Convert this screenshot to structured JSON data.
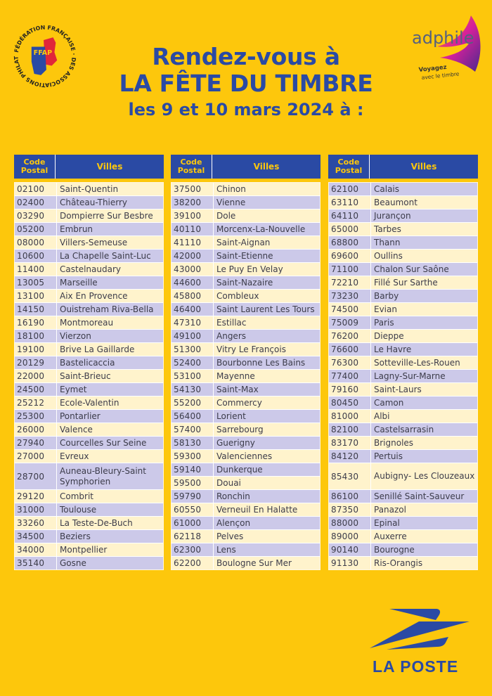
{
  "header": {
    "line1": "Rendez-vous à",
    "line2": "LA FÊTE DU TIMBRE",
    "line3": "les 9 et 10 mars 2024 à :"
  },
  "logos": {
    "ffap": {
      "ring_text": "FÉDÉRATION FRANÇAISE DES ASSOCIATIONS PHILATÉLIQUES",
      "initials": "FFAP"
    },
    "adphile": {
      "name": "adphile",
      "tagline_1": "Voyagez",
      "tagline_2": "avec le timbre"
    },
    "laposte": {
      "name": "LA POSTE"
    }
  },
  "colors": {
    "background": "#fdc70c",
    "header_blue": "#2a4aa4",
    "row_light": "#fff3cc",
    "row_dark": "#ccc9e9"
  },
  "table_headers": {
    "code": "Code Postal",
    "city": "Villes"
  },
  "tables": [
    {
      "first_row_style": "light",
      "rows": [
        {
          "code": "02100",
          "city": "Saint-Quentin"
        },
        {
          "code": "02400",
          "city": "Château-Thierry"
        },
        {
          "code": "03290",
          "city": "Dompierre Sur Besbre"
        },
        {
          "code": "05200",
          "city": "Embrun"
        },
        {
          "code": "08000",
          "city": "Villers-Semeuse"
        },
        {
          "code": "10600",
          "city": "La Chapelle Saint-Luc"
        },
        {
          "code": "11400",
          "city": "Castelnaudary"
        },
        {
          "code": "13005",
          "city": "Marseille"
        },
        {
          "code": "13100",
          "city": "Aix En Provence"
        },
        {
          "code": "14150",
          "city": "Ouistreham Riva-Bella"
        },
        {
          "code": "16190",
          "city": "Montmoreau"
        },
        {
          "code": "18100",
          "city": "Vierzon"
        },
        {
          "code": "19100",
          "city": "Brive La Gaillarde"
        },
        {
          "code": "20129",
          "city": "Bastelicaccia"
        },
        {
          "code": "22000",
          "city": "Saint-Brieuc"
        },
        {
          "code": "24500",
          "city": "Eymet"
        },
        {
          "code": "25212",
          "city": "Ecole-Valentin"
        },
        {
          "code": "25300",
          "city": "Pontarlier"
        },
        {
          "code": "26000",
          "city": "Valence"
        },
        {
          "code": "27940",
          "city": "Courcelles Sur Seine"
        },
        {
          "code": "27000",
          "city": "Evreux"
        },
        {
          "code": "28700",
          "city": "Auneau-Bleury-Saint Symphorien",
          "tall": true
        },
        {
          "code": "29120",
          "city": "Combrit"
        },
        {
          "code": "31000",
          "city": "Toulouse"
        },
        {
          "code": "33260",
          "city": "La Teste-De-Buch"
        },
        {
          "code": "34500",
          "city": "Beziers"
        },
        {
          "code": "34000",
          "city": "Montpellier"
        },
        {
          "code": "35140",
          "city": "Gosne"
        }
      ]
    },
    {
      "first_row_style": "light",
      "rows": [
        {
          "code": "37500",
          "city": "Chinon"
        },
        {
          "code": "38200",
          "city": "Vienne"
        },
        {
          "code": "39100",
          "city": "Dole"
        },
        {
          "code": "40110",
          "city": "Morcenx-La-Nouvelle"
        },
        {
          "code": "41110",
          "city": "Saint-Aignan"
        },
        {
          "code": "42000",
          "city": "Saint-Etienne"
        },
        {
          "code": "43000",
          "city": "Le Puy En Velay"
        },
        {
          "code": "44600",
          "city": "Saint-Nazaire"
        },
        {
          "code": "45800",
          "city": "Combleux"
        },
        {
          "code": "46400",
          "city": "Saint Laurent Les Tours"
        },
        {
          "code": "47310",
          "city": "Estillac"
        },
        {
          "code": "49100",
          "city": "Angers"
        },
        {
          "code": "51300",
          "city": "Vitry Le François"
        },
        {
          "code": "52400",
          "city": "Bourbonne Les Bains"
        },
        {
          "code": "53100",
          "city": "Mayenne"
        },
        {
          "code": "54130",
          "city": "Saint-Max"
        },
        {
          "code": "55200",
          "city": "Commercy"
        },
        {
          "code": "56400",
          "city": "Lorient"
        },
        {
          "code": "57400",
          "city": "Sarrebourg"
        },
        {
          "code": "58130",
          "city": "Guerigny"
        },
        {
          "code": "59300",
          "city": "Valenciennes"
        },
        {
          "code": "59140",
          "city": "Dunkerque"
        },
        {
          "code": "59500",
          "city": "Douai"
        },
        {
          "code": "59790",
          "city": "Ronchin"
        },
        {
          "code": "60550",
          "city": "Verneuil En Halatte"
        },
        {
          "code": "61000",
          "city": "Alençon"
        },
        {
          "code": "62118",
          "city": "Pelves"
        },
        {
          "code": "62300",
          "city": "Lens"
        },
        {
          "code": "62200",
          "city": "Boulogne Sur Mer"
        }
      ]
    },
    {
      "first_row_style": "dark",
      "rows": [
        {
          "code": "62100",
          "city": "Calais"
        },
        {
          "code": "63110",
          "city": "Beaumont"
        },
        {
          "code": "64110",
          "city": "Jurançon"
        },
        {
          "code": "65000",
          "city": "Tarbes"
        },
        {
          "code": "68800",
          "city": "Thann"
        },
        {
          "code": "69600",
          "city": "Oullins"
        },
        {
          "code": "71100",
          "city": "Chalon Sur Saône"
        },
        {
          "code": "72210",
          "city": "Fillé Sur Sarthe"
        },
        {
          "code": "73230",
          "city": "Barby"
        },
        {
          "code": "74500",
          "city": "Evian"
        },
        {
          "code": "75009",
          "city": "Paris"
        },
        {
          "code": "76200",
          "city": "Dieppe"
        },
        {
          "code": "76600",
          "city": "Le Havre"
        },
        {
          "code": "76300",
          "city": "Sotteville-Les-Rouen"
        },
        {
          "code": "77400",
          "city": "Lagny-Sur-Marne"
        },
        {
          "code": "79160",
          "city": "Saint-Laurs"
        },
        {
          "code": "80450",
          "city": "Camon"
        },
        {
          "code": "81000",
          "city": "Albi"
        },
        {
          "code": "82100",
          "city": "Castelsarrasin"
        },
        {
          "code": "83170",
          "city": "Brignoles"
        },
        {
          "code": "84120",
          "city": "Pertuis"
        },
        {
          "code": "85430",
          "city": "Aubigny- Les Clouzeaux",
          "tall": true
        },
        {
          "code": "86100",
          "city": "Senillé Saint-Sauveur"
        },
        {
          "code": "87350",
          "city": "Panazol"
        },
        {
          "code": "88000",
          "city": "Epinal"
        },
        {
          "code": "89000",
          "city": "Auxerre"
        },
        {
          "code": "90140",
          "city": "Bourogne"
        },
        {
          "code": "91130",
          "city": "Ris-Orangis"
        }
      ]
    }
  ]
}
